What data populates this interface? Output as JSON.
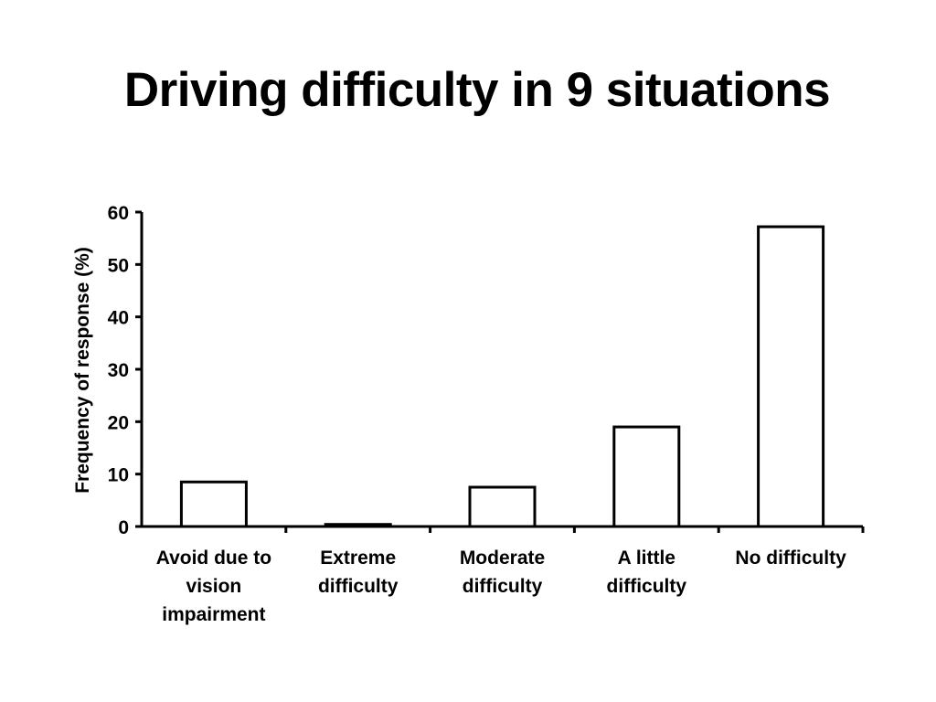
{
  "chart_data": {
    "type": "bar",
    "title": "Driving difficulty in 9 situations",
    "ylabel": "Frequency of response (%)",
    "xlabel": "",
    "categories": [
      [
        "Avoid due to",
        "vision",
        "impairment"
      ],
      [
        "Extreme",
        "difficulty"
      ],
      [
        "Moderate",
        "difficulty"
      ],
      [
        "A little",
        "difficulty"
      ],
      [
        "No difficulty"
      ]
    ],
    "values": [
      8.5,
      0.4,
      7.5,
      19,
      57.2
    ],
    "ylim": [
      0,
      60
    ],
    "yticks": [
      "0",
      "10",
      "20",
      "30",
      "40",
      "50",
      "60"
    ],
    "grid": false,
    "bar_fill": "#ffffff",
    "bar_stroke": "#000000"
  }
}
